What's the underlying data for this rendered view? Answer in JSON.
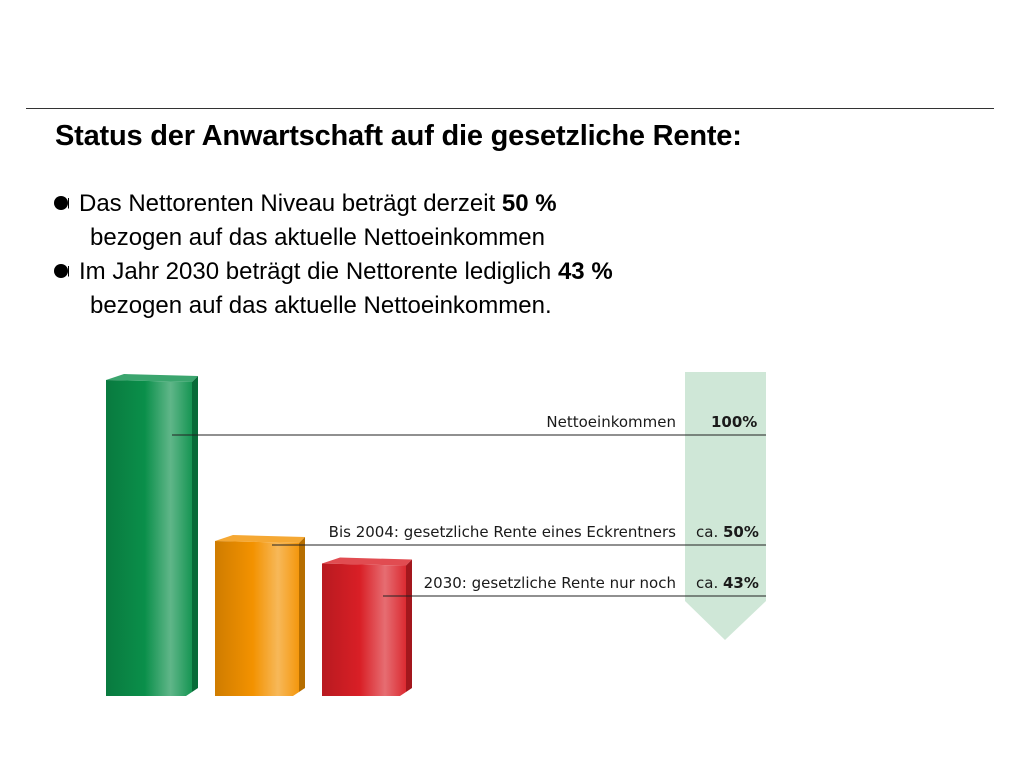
{
  "title": "Status der Anwartschaft auf die gesetzliche Rente:",
  "bullets": [
    {
      "prefix": "Das Nettorenten Niveau beträgt derzeit ",
      "value": "50 %",
      "continuation": "bezogen auf das aktuelle Nettoeinkommen"
    },
    {
      "prefix": "Im Jahr 2030 beträgt die Nettorente lediglich ",
      "value": "43 %",
      "continuation": "bezogen auf das aktuelle Nettoeinkommen."
    }
  ],
  "chart_data": {
    "type": "bar",
    "categories": [
      "Nettoeinkommen",
      "Bis 2004: gesetzliche Rente eines Eckrentners",
      "2030: gesetzliche Rente nur noch"
    ],
    "values": [
      100,
      50,
      43
    ],
    "value_labels": [
      {
        "prefix": "",
        "value": "100%"
      },
      {
        "prefix": "ca. ",
        "value": "50%"
      },
      {
        "prefix": "ca. ",
        "value": "43%"
      }
    ],
    "colors": [
      "#0a8f4a",
      "#f39200",
      "#d91f26"
    ],
    "arrow_color": "#cfe7d7",
    "ylim": [
      0,
      100
    ]
  }
}
